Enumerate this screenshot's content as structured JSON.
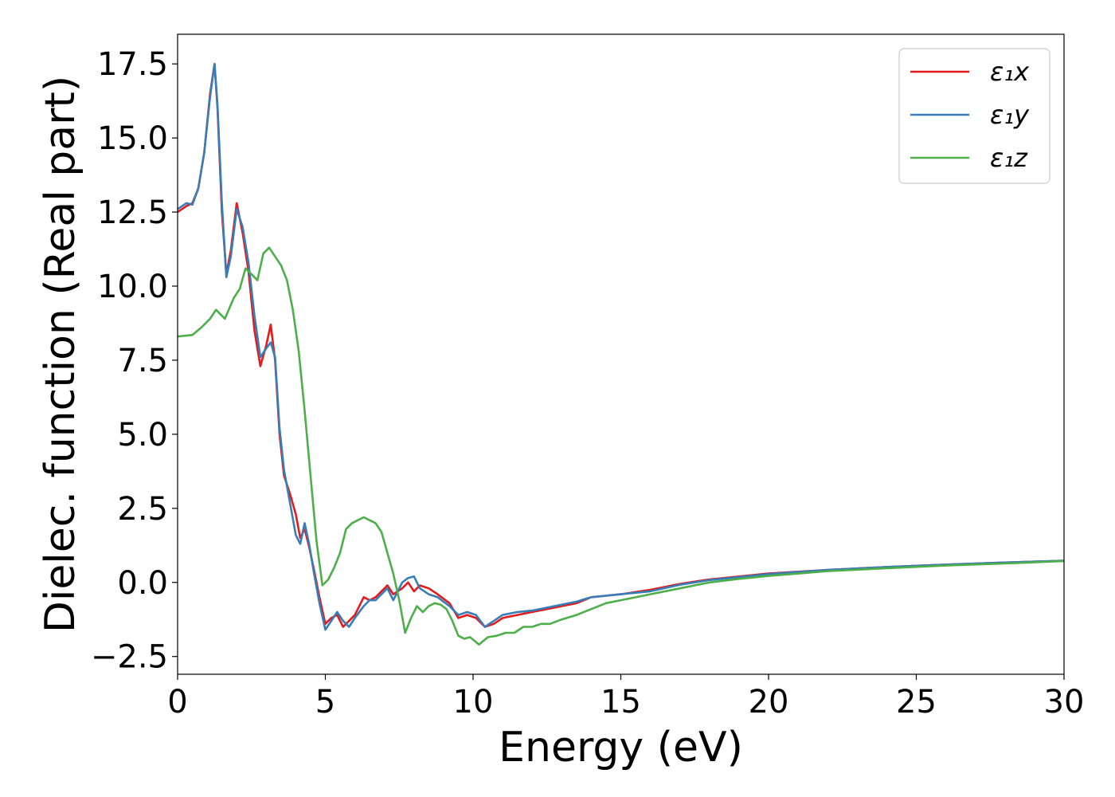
{
  "chart_data": {
    "type": "line",
    "xlabel": "Energy (eV)",
    "ylabel": "Dielec. function (Real part)",
    "xlim": [
      0,
      30
    ],
    "ylim": [
      -3.1,
      18.5
    ],
    "xticks": [
      0,
      5,
      10,
      15,
      20,
      25,
      30
    ],
    "xtick_labels": [
      "0",
      "5",
      "10",
      "15",
      "20",
      "25",
      "30"
    ],
    "yticks": [
      -2.5,
      0.0,
      2.5,
      5.0,
      7.5,
      10.0,
      12.5,
      15.0,
      17.5
    ],
    "ytick_labels": [
      "−2.5",
      "0.0",
      "2.5",
      "5.0",
      "7.5",
      "10.0",
      "12.5",
      "15.0",
      "17.5"
    ],
    "grid": false,
    "legend_position": "top-right",
    "series": [
      {
        "name": "ε₁x",
        "color": "#e41a1c",
        "points": [
          [
            0,
            12.5
          ],
          [
            0.3,
            12.7
          ],
          [
            0.5,
            12.8
          ],
          [
            0.7,
            13.3
          ],
          [
            0.9,
            14.5
          ],
          [
            1.1,
            16.5
          ],
          [
            1.25,
            17.5
          ],
          [
            1.35,
            16.0
          ],
          [
            1.5,
            12.5
          ],
          [
            1.65,
            10.4
          ],
          [
            1.8,
            11.2
          ],
          [
            2.0,
            12.8
          ],
          [
            2.2,
            11.8
          ],
          [
            2.4,
            10.5
          ],
          [
            2.6,
            8.5
          ],
          [
            2.8,
            7.3
          ],
          [
            3.0,
            8.0
          ],
          [
            3.15,
            8.7
          ],
          [
            3.3,
            7.5
          ],
          [
            3.45,
            5.0
          ],
          [
            3.6,
            3.6
          ],
          [
            3.8,
            3.0
          ],
          [
            4.0,
            2.3
          ],
          [
            4.15,
            1.5
          ],
          [
            4.3,
            1.8
          ],
          [
            4.45,
            1.2
          ],
          [
            4.6,
            0.5
          ],
          [
            4.8,
            -0.5
          ],
          [
            5.0,
            -1.4
          ],
          [
            5.2,
            -1.2
          ],
          [
            5.4,
            -1.1
          ],
          [
            5.6,
            -1.5
          ],
          [
            5.8,
            -1.3
          ],
          [
            6.0,
            -1.1
          ],
          [
            6.3,
            -0.5
          ],
          [
            6.5,
            -0.6
          ],
          [
            6.7,
            -0.5
          ],
          [
            6.9,
            -0.3
          ],
          [
            7.1,
            -0.1
          ],
          [
            7.3,
            -0.4
          ],
          [
            7.6,
            -0.2
          ],
          [
            7.8,
            0.0
          ],
          [
            8.0,
            -0.3
          ],
          [
            8.2,
            -0.1
          ],
          [
            8.5,
            -0.2
          ],
          [
            8.8,
            -0.4
          ],
          [
            9.2,
            -0.7
          ],
          [
            9.5,
            -1.2
          ],
          [
            9.8,
            -1.1
          ],
          [
            10.1,
            -1.2
          ],
          [
            10.4,
            -1.5
          ],
          [
            10.7,
            -1.4
          ],
          [
            11.0,
            -1.2
          ],
          [
            11.5,
            -1.1
          ],
          [
            12.0,
            -1.0
          ],
          [
            12.5,
            -0.9
          ],
          [
            13.0,
            -0.8
          ],
          [
            13.5,
            -0.7
          ],
          [
            14.0,
            -0.5
          ],
          [
            15.0,
            -0.4
          ],
          [
            16.0,
            -0.25
          ],
          [
            17.0,
            -0.05
          ],
          [
            18.0,
            0.1
          ],
          [
            19.0,
            0.2
          ],
          [
            20.0,
            0.3
          ],
          [
            22.0,
            0.42
          ],
          [
            24.0,
            0.52
          ],
          [
            26.0,
            0.6
          ],
          [
            28.0,
            0.67
          ],
          [
            30.0,
            0.73
          ]
        ]
      },
      {
        "name": "ε₁y",
        "color": "#377eb8",
        "points": [
          [
            0,
            12.6
          ],
          [
            0.3,
            12.8
          ],
          [
            0.5,
            12.75
          ],
          [
            0.7,
            13.3
          ],
          [
            0.9,
            14.5
          ],
          [
            1.1,
            16.4
          ],
          [
            1.25,
            17.5
          ],
          [
            1.35,
            16.1
          ],
          [
            1.5,
            12.8
          ],
          [
            1.65,
            10.3
          ],
          [
            1.8,
            11.0
          ],
          [
            2.0,
            12.6
          ],
          [
            2.2,
            12.0
          ],
          [
            2.4,
            10.8
          ],
          [
            2.6,
            9.0
          ],
          [
            2.8,
            7.6
          ],
          [
            3.0,
            7.9
          ],
          [
            3.15,
            8.1
          ],
          [
            3.3,
            7.6
          ],
          [
            3.45,
            5.2
          ],
          [
            3.6,
            3.8
          ],
          [
            3.8,
            2.7
          ],
          [
            4.0,
            1.6
          ],
          [
            4.15,
            1.3
          ],
          [
            4.3,
            2.0
          ],
          [
            4.45,
            1.3
          ],
          [
            4.6,
            0.4
          ],
          [
            4.8,
            -0.7
          ],
          [
            5.0,
            -1.6
          ],
          [
            5.2,
            -1.3
          ],
          [
            5.4,
            -1.0
          ],
          [
            5.6,
            -1.3
          ],
          [
            5.8,
            -1.5
          ],
          [
            6.0,
            -1.2
          ],
          [
            6.3,
            -0.8
          ],
          [
            6.5,
            -0.6
          ],
          [
            6.7,
            -0.6
          ],
          [
            6.9,
            -0.4
          ],
          [
            7.1,
            -0.2
          ],
          [
            7.3,
            -0.6
          ],
          [
            7.6,
            0.0
          ],
          [
            7.8,
            0.15
          ],
          [
            8.0,
            0.2
          ],
          [
            8.2,
            -0.2
          ],
          [
            8.5,
            -0.4
          ],
          [
            8.8,
            -0.5
          ],
          [
            9.2,
            -0.8
          ],
          [
            9.5,
            -1.1
          ],
          [
            9.8,
            -1.0
          ],
          [
            10.1,
            -1.1
          ],
          [
            10.4,
            -1.5
          ],
          [
            10.7,
            -1.3
          ],
          [
            11.0,
            -1.1
          ],
          [
            11.5,
            -1.0
          ],
          [
            12.0,
            -0.95
          ],
          [
            12.5,
            -0.85
          ],
          [
            13.0,
            -0.75
          ],
          [
            13.5,
            -0.65
          ],
          [
            14.0,
            -0.5
          ],
          [
            15.0,
            -0.4
          ],
          [
            16.0,
            -0.3
          ],
          [
            17.0,
            -0.08
          ],
          [
            18.0,
            0.08
          ],
          [
            19.0,
            0.18
          ],
          [
            20.0,
            0.28
          ],
          [
            22.0,
            0.42
          ],
          [
            24.0,
            0.52
          ],
          [
            26.0,
            0.6
          ],
          [
            28.0,
            0.67
          ],
          [
            30.0,
            0.73
          ]
        ]
      },
      {
        "name": "ε₁z",
        "color": "#4daf4a",
        "points": [
          [
            0,
            8.3
          ],
          [
            0.5,
            8.35
          ],
          [
            0.8,
            8.6
          ],
          [
            1.1,
            8.9
          ],
          [
            1.3,
            9.2
          ],
          [
            1.6,
            8.9
          ],
          [
            1.9,
            9.6
          ],
          [
            2.1,
            9.9
          ],
          [
            2.3,
            10.6
          ],
          [
            2.5,
            10.4
          ],
          [
            2.7,
            10.2
          ],
          [
            2.9,
            11.1
          ],
          [
            3.1,
            11.3
          ],
          [
            3.3,
            11.0
          ],
          [
            3.5,
            10.7
          ],
          [
            3.7,
            10.2
          ],
          [
            3.9,
            9.2
          ],
          [
            4.1,
            7.8
          ],
          [
            4.3,
            5.8
          ],
          [
            4.5,
            3.6
          ],
          [
            4.7,
            1.4
          ],
          [
            4.9,
            -0.1
          ],
          [
            5.1,
            0.1
          ],
          [
            5.3,
            0.5
          ],
          [
            5.5,
            1.0
          ],
          [
            5.7,
            1.8
          ],
          [
            5.9,
            2.0
          ],
          [
            6.1,
            2.1
          ],
          [
            6.3,
            2.2
          ],
          [
            6.5,
            2.1
          ],
          [
            6.7,
            2.0
          ],
          [
            6.9,
            1.7
          ],
          [
            7.1,
            1.0
          ],
          [
            7.3,
            0.3
          ],
          [
            7.5,
            -0.6
          ],
          [
            7.7,
            -1.7
          ],
          [
            7.9,
            -1.2
          ],
          [
            8.1,
            -0.8
          ],
          [
            8.3,
            -1.0
          ],
          [
            8.5,
            -0.8
          ],
          [
            8.7,
            -0.7
          ],
          [
            8.9,
            -0.75
          ],
          [
            9.1,
            -0.9
          ],
          [
            9.3,
            -1.3
          ],
          [
            9.5,
            -1.8
          ],
          [
            9.7,
            -1.9
          ],
          [
            9.9,
            -1.85
          ],
          [
            10.2,
            -2.1
          ],
          [
            10.5,
            -1.85
          ],
          [
            10.8,
            -1.8
          ],
          [
            11.1,
            -1.7
          ],
          [
            11.4,
            -1.7
          ],
          [
            11.7,
            -1.5
          ],
          [
            12.0,
            -1.5
          ],
          [
            12.3,
            -1.4
          ],
          [
            12.6,
            -1.4
          ],
          [
            13.0,
            -1.25
          ],
          [
            13.5,
            -1.1
          ],
          [
            14.0,
            -0.9
          ],
          [
            14.5,
            -0.7
          ],
          [
            15.0,
            -0.6
          ],
          [
            16.0,
            -0.4
          ],
          [
            17.0,
            -0.2
          ],
          [
            18.0,
            0.0
          ],
          [
            19.0,
            0.12
          ],
          [
            20.0,
            0.22
          ],
          [
            22.0,
            0.38
          ],
          [
            24.0,
            0.48
          ],
          [
            26.0,
            0.57
          ],
          [
            28.0,
            0.64
          ],
          [
            30.0,
            0.72
          ]
        ]
      }
    ]
  }
}
